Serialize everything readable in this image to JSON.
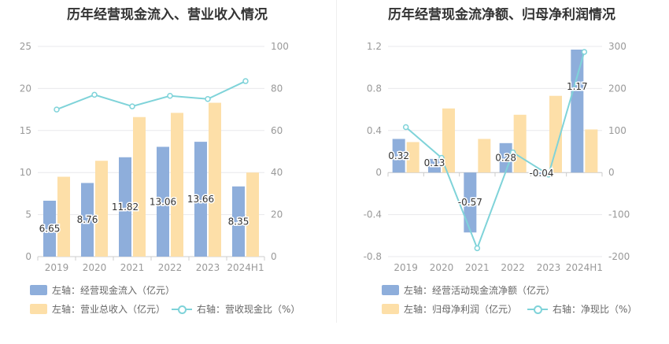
{
  "colors": {
    "bar1": "#8eaedb",
    "bar2": "#fddfa8",
    "line": "#7fd3d9",
    "grid": "#e8e8ec",
    "tick": "#999999"
  },
  "chart_data": [
    {
      "type": "bar",
      "title": "历年经营现金流入、营业收入情况",
      "categories": [
        "2019",
        "2020",
        "2021",
        "2022",
        "2023",
        "2024H1"
      ],
      "left_axis": {
        "ylim": [
          0,
          25
        ],
        "ticks": [
          "0",
          "5",
          "10",
          "15",
          "20",
          "25"
        ]
      },
      "right_axis": {
        "ylim": [
          0,
          100
        ],
        "ticks": [
          "0",
          "20",
          "40",
          "60",
          "80",
          "100"
        ]
      },
      "series": [
        {
          "name": "左轴：经营现金流入（亿元）",
          "type": "bar",
          "axis": "left",
          "values": [
            6.65,
            8.76,
            11.82,
            13.06,
            13.66,
            8.35
          ],
          "labels": [
            "6.65",
            "8.76",
            "11.82",
            "13.06",
            "13.66",
            "8.35"
          ]
        },
        {
          "name": "左轴：营业总收入（亿元）",
          "type": "bar",
          "axis": "left",
          "values": [
            9.5,
            11.4,
            16.6,
            17.1,
            18.3,
            10.0
          ]
        },
        {
          "name": "右轴：营收现金比（%）",
          "type": "line",
          "axis": "right",
          "values": [
            70,
            77,
            71.5,
            76.5,
            75,
            83.5
          ]
        }
      ]
    },
    {
      "type": "bar",
      "title": "历年经营现金流净额、归母净利润情况",
      "categories": [
        "2019",
        "2020",
        "2021",
        "2022",
        "2023",
        "2024H1"
      ],
      "left_axis": {
        "ylim": [
          -0.8,
          1.2
        ],
        "ticks": [
          "-0.8",
          "-0.4",
          "0",
          "0.4",
          "0.8",
          "1.2"
        ]
      },
      "right_axis": {
        "ylim": [
          -200,
          300
        ],
        "ticks": [
          "-200",
          "-100",
          "0",
          "100",
          "200",
          "300"
        ]
      },
      "series": [
        {
          "name": "左轴：经营活动现金流净额（亿元）",
          "type": "bar",
          "axis": "left",
          "values": [
            0.32,
            0.13,
            -0.57,
            0.28,
            -0.04,
            1.17
          ],
          "labels": [
            "0.32",
            "0.13",
            "-0.57",
            "0.28",
            "-0.04",
            "1.17"
          ]
        },
        {
          "name": "左轴：归母净利润（亿元）",
          "type": "bar",
          "axis": "left",
          "values": [
            0.29,
            0.61,
            0.32,
            0.55,
            0.73,
            0.41
          ]
        },
        {
          "name": "右轴：净现比（%）",
          "type": "line",
          "axis": "right",
          "values": [
            108,
            35,
            -180,
            48,
            -5,
            287
          ]
        }
      ]
    }
  ]
}
